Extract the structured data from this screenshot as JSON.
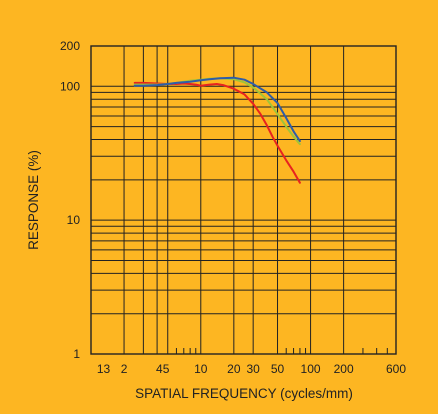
{
  "chart_data": {
    "type": "line",
    "xlabel": "SPATIAL FREQUENCY (cycles/mm)",
    "ylabel": "RESPONSE (%)",
    "xscale": "log",
    "yscale": "log",
    "xlim": [
      1,
      600
    ],
    "ylim": [
      1,
      200
    ],
    "grid": true,
    "background": "#FDB622",
    "x_tick_labels": [
      "13",
      "2",
      "45",
      "10",
      "20",
      "30",
      "50",
      "100",
      "200",
      "600"
    ],
    "y_tick_labels": [
      "1",
      "10",
      "100",
      "200"
    ],
    "series": [
      {
        "color": "#E8231F",
        "x": [
          2.5,
          3,
          4,
          5,
          6,
          7,
          8,
          9,
          10,
          12,
          14,
          16,
          20,
          25,
          30,
          35,
          40,
          45,
          50,
          60,
          70,
          80
        ],
        "y": [
          106,
          106,
          105,
          104,
          104,
          105,
          104,
          103,
          101,
          103,
          104,
          102,
          96,
          87,
          74,
          62,
          51,
          42,
          36,
          28,
          23,
          19
        ]
      },
      {
        "color": "#9FC43A",
        "x": [
          2.5,
          3,
          4,
          5,
          6,
          8,
          10,
          12,
          15,
          20,
          25,
          30,
          40,
          50,
          60,
          70,
          80
        ],
        "y": [
          103,
          103,
          103,
          104,
          106,
          110,
          112,
          114,
          115,
          113,
          107,
          98,
          80,
          62,
          50,
          42,
          37
        ]
      },
      {
        "color": "#2E5DA8",
        "x": [
          2.5,
          3,
          4,
          5,
          6,
          8,
          10,
          12,
          15,
          20,
          25,
          30,
          40,
          50,
          60,
          70,
          80
        ],
        "y": [
          101,
          101,
          102,
          104,
          106,
          108,
          111,
          113,
          115,
          116,
          112,
          104,
          90,
          75,
          58,
          46,
          39
        ]
      }
    ]
  }
}
